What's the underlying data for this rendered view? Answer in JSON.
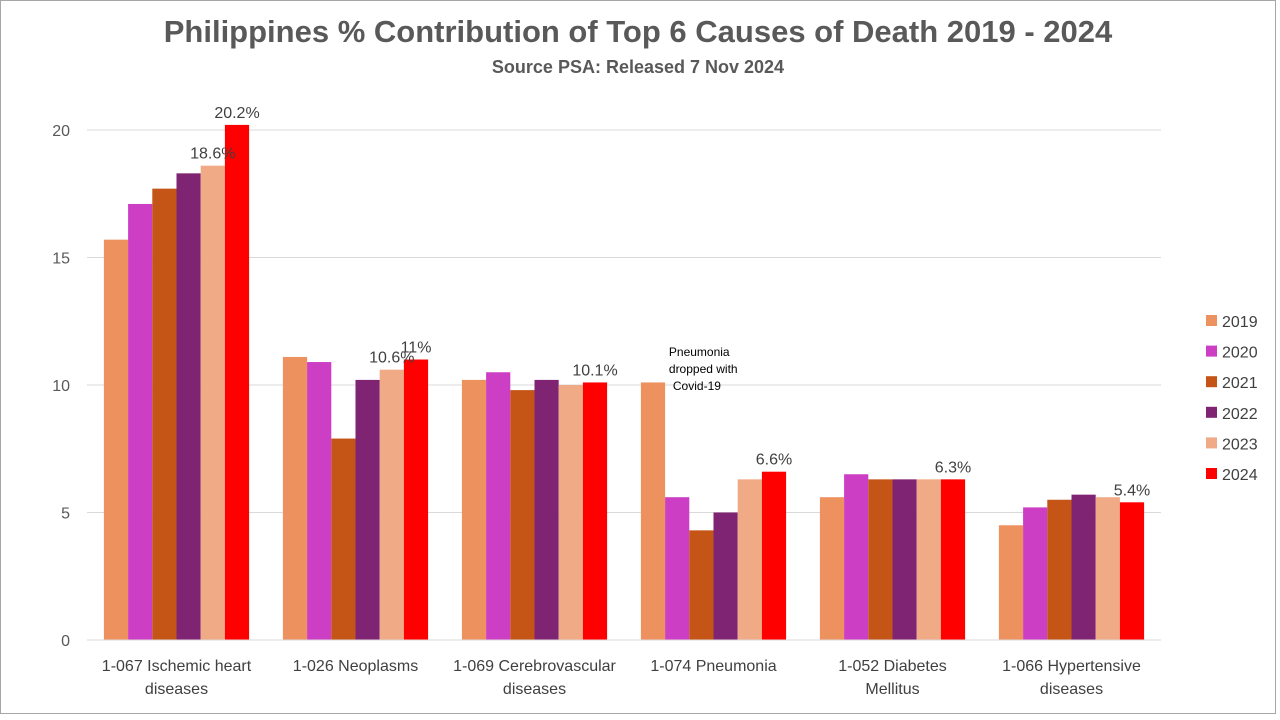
{
  "chart_data": {
    "type": "bar",
    "title": "Philippines % Contribution of Top 6 Causes of Death 2019 - 2024",
    "subtitle": "Source PSA: Released 7 Nov 2024",
    "categories": [
      [
        "1-067  Ischemic heart",
        "diseases"
      ],
      [
        "1-026  Neoplasms"
      ],
      [
        "1-069  Cerebrovascular",
        "diseases"
      ],
      [
        "1-074  Pneumonia"
      ],
      [
        "1-052  Diabetes",
        "Mellitus"
      ],
      [
        "1-066  Hypertensive",
        "diseases"
      ]
    ],
    "series": [
      {
        "name": "2019",
        "color": "#ED915F",
        "values": [
          15.7,
          11.1,
          10.2,
          10.1,
          5.6,
          4.5
        ]
      },
      {
        "name": "2020",
        "color": "#CC3EC4",
        "values": [
          17.1,
          10.9,
          10.5,
          5.6,
          6.5,
          5.2
        ]
      },
      {
        "name": "2021",
        "color": "#C55517",
        "values": [
          17.7,
          7.9,
          9.8,
          4.3,
          6.3,
          5.5
        ]
      },
      {
        "name": "2022",
        "color": "#7F2373",
        "values": [
          18.3,
          10.2,
          10.2,
          5.0,
          6.3,
          5.7
        ]
      },
      {
        "name": "2023",
        "color": "#F1AA86",
        "values": [
          18.6,
          10.6,
          10.0,
          6.3,
          6.3,
          5.6
        ]
      },
      {
        "name": "2024",
        "color": "#FF0000",
        "values": [
          20.2,
          11.0,
          10.1,
          6.6,
          6.3,
          5.4
        ]
      }
    ],
    "data_labels": [
      {
        "category": 0,
        "series": 4,
        "text": "18.6%"
      },
      {
        "category": 0,
        "series": 5,
        "text": "20.2%"
      },
      {
        "category": 1,
        "series": 4,
        "text": "10.6%"
      },
      {
        "category": 1,
        "series": 5,
        "text": "11%"
      },
      {
        "category": 2,
        "series": 5,
        "text": "10.1%"
      },
      {
        "category": 3,
        "series": 5,
        "text": "6.6%"
      },
      {
        "category": 4,
        "series": 5,
        "text": "6.3%"
      },
      {
        "category": 5,
        "series": 5,
        "text": "5.4%"
      }
    ],
    "annotation": {
      "category": 3,
      "lines": [
        "Pneumonia",
        "dropped with",
        "Covid-19"
      ]
    },
    "yticks": [
      0,
      5,
      10,
      15,
      20
    ],
    "ylim": [
      0,
      20
    ],
    "grid": true,
    "legend_position": "right"
  }
}
